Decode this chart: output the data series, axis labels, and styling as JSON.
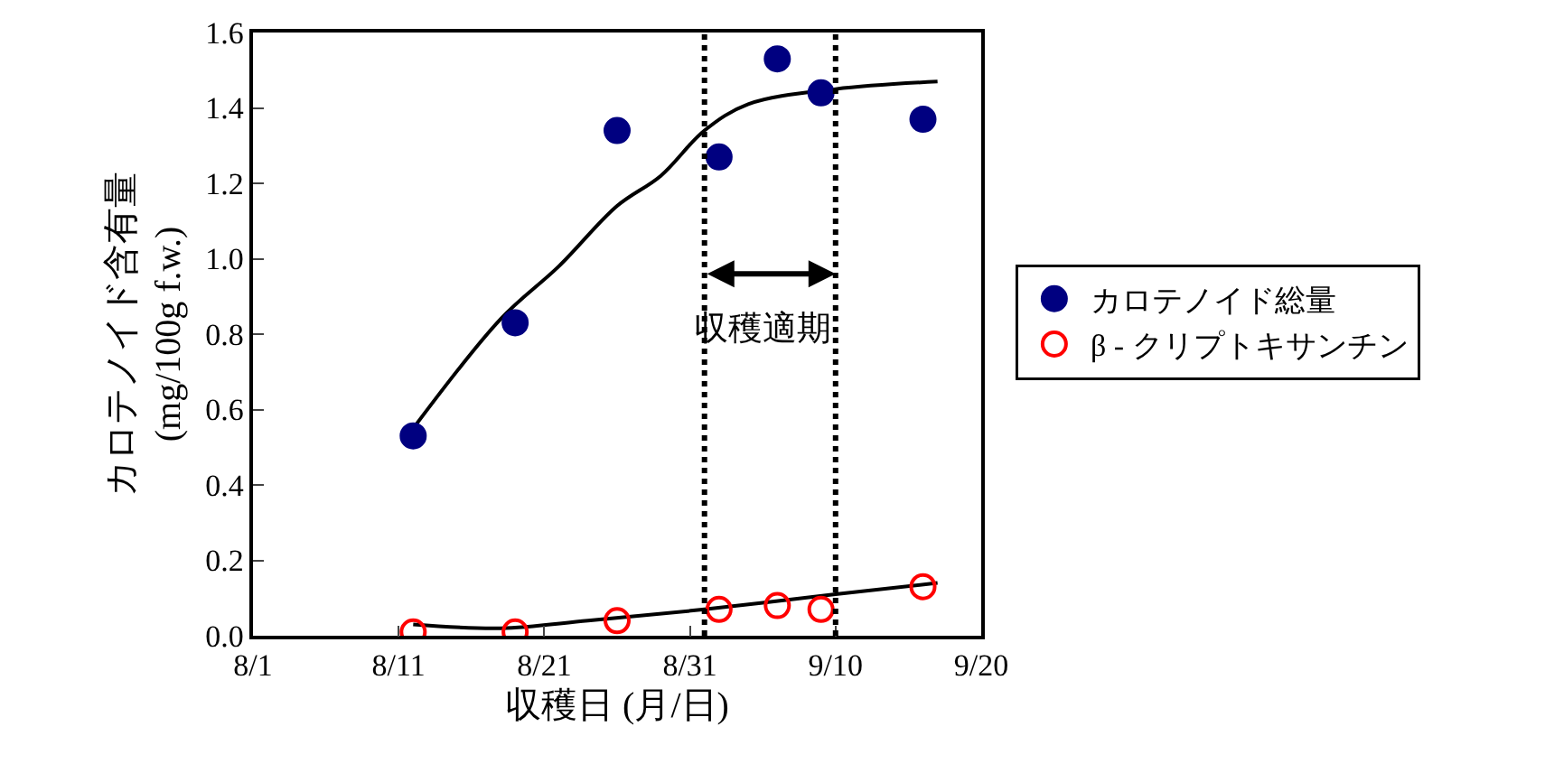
{
  "chart_data": {
    "type": "scatter",
    "xlabel": "収穫日 (月/日)",
    "ylabel": "カロテノイド含有量\n(mg/100g f.w.)",
    "series": [
      {
        "name": "カロテノイド総量",
        "color": "#000080",
        "marker": "circle",
        "x": [
          "--08-12",
          "--08-19",
          "--08-26",
          "--09-02",
          "--09-06",
          "--09-09",
          "--09-16"
        ],
        "values": [
          0.53,
          0.83,
          1.34,
          1.27,
          1.53,
          1.44,
          1.37
        ]
      },
      {
        "name": "β - クリプトキサンチン",
        "color": "#ff0000",
        "marker": "circle-open",
        "x": [
          "--08-12",
          "--08-19",
          "--08-26",
          "--09-02",
          "--09-06",
          "--09-09",
          "--09-16"
        ],
        "values": [
          0.01,
          0.01,
          0.04,
          0.07,
          0.08,
          0.07,
          0.13
        ]
      },
      {
        "type": "line",
        "color": "#000000",
        "x": [
          "--08-12",
          "--08-18",
          "--08-22",
          "--08-26",
          "--08-29",
          "--09-01",
          "--09-04",
          "--09-10",
          "--09-17"
        ],
        "values": [
          0.55,
          0.84,
          0.98,
          1.14,
          1.22,
          1.34,
          1.41,
          1.45,
          1.47
        ]
      },
      {
        "type": "line",
        "color": "#000000",
        "x": [
          "--08-12",
          "--08-18",
          "--08-24",
          "--09-01",
          "--09-10",
          "--09-17"
        ],
        "values": [
          0.03,
          0.02,
          0.04,
          0.07,
          0.11,
          0.14
        ]
      }
    ],
    "xlim": [
      "--08-01",
      "--09-20"
    ],
    "xticks": [
      {
        "value": "--08-01",
        "label": "8/1"
      },
      {
        "value": "--08-11",
        "label": "8/11"
      },
      {
        "value": "--08-21",
        "label": "8/21"
      },
      {
        "value": "--08-31",
        "label": "8/31"
      },
      {
        "value": "--09-10",
        "label": "9/10"
      },
      {
        "value": "--09-20",
        "label": "9/20"
      }
    ],
    "ylim": [
      0,
      1.6
    ],
    "yticks": [
      {
        "value": 0,
        "label": "0.0"
      },
      {
        "value": 0.2,
        "label": "0.2"
      },
      {
        "value": 0.4,
        "label": "0.4"
      },
      {
        "value": 0.6,
        "label": "0.6"
      },
      {
        "value": 0.8,
        "label": "0.8"
      },
      {
        "value": 1,
        "label": "1.0"
      },
      {
        "value": 1.2,
        "label": "1.2"
      },
      {
        "value": 1.4,
        "label": "1.4"
      },
      {
        "value": 1.6,
        "label": "1.6"
      }
    ],
    "ref_lines": [
      {
        "axis": "x",
        "value": "--09-01",
        "color": "#000000",
        "line_style": "dotted"
      },
      {
        "axis": "x",
        "value": "--09-10",
        "color": "#000000",
        "line_style": "dotted"
      }
    ],
    "annotations": [
      "収穫適期"
    ],
    "grid": false,
    "legend": "right"
  }
}
